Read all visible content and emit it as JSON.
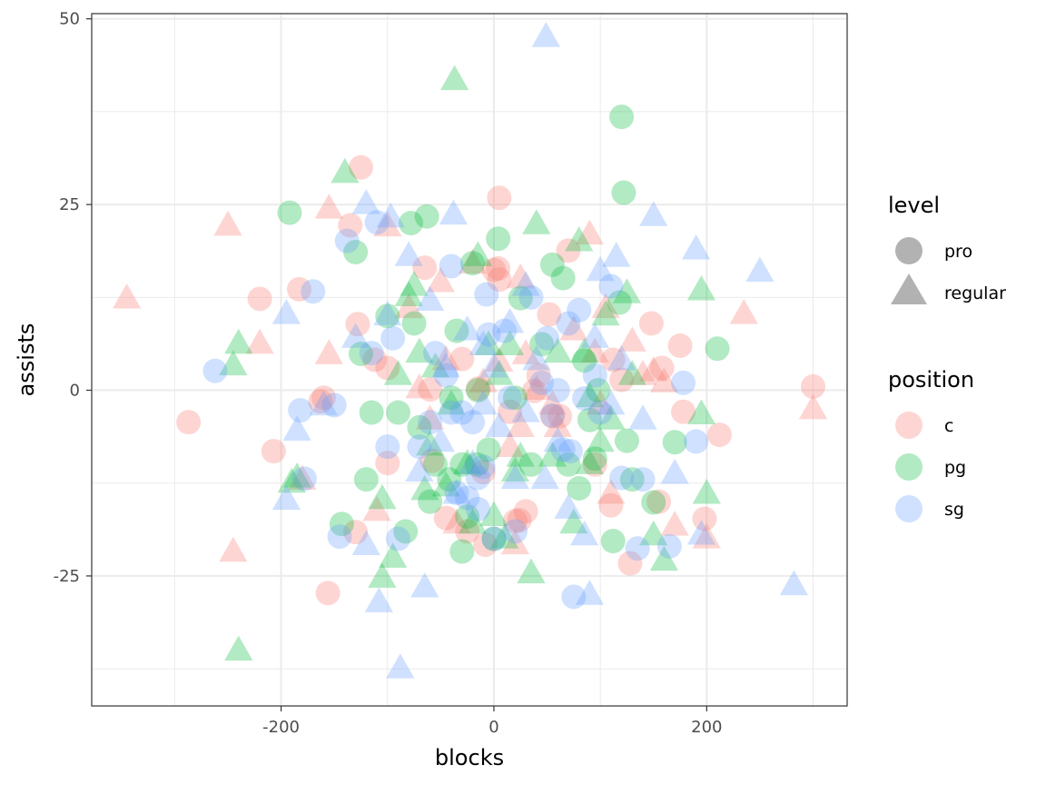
{
  "chart_data": {
    "type": "scatter",
    "title": "",
    "xlabel": "blocks",
    "ylabel": "assists",
    "xlim": [
      -378,
      332
    ],
    "ylim": [
      -42.5,
      50.7
    ],
    "x_ticks": [
      -200,
      0,
      200
    ],
    "y_ticks": [
      -25,
      0,
      25,
      50
    ],
    "x_tick_labels": [
      "-200",
      "0",
      "200"
    ],
    "y_tick_labels": [
      "-25",
      "0",
      "25",
      "50"
    ],
    "grid": true,
    "legend_position": "right",
    "legends": {
      "level": {
        "title": "level",
        "items": [
          {
            "label": "pro",
            "shape": "circle"
          },
          {
            "label": "regular",
            "shape": "triangle"
          }
        ]
      },
      "position": {
        "title": "position",
        "items": [
          {
            "label": "c",
            "color": "#F8766D"
          },
          {
            "label": "pg",
            "color": "#00BA38"
          },
          {
            "label": "sg",
            "color": "#619CFF"
          }
        ]
      }
    },
    "point_alpha": 0.3,
    "series": [
      {
        "position": "c",
        "level": "pro",
        "points": [
          [
            -287,
            -4.3
          ],
          [
            -207,
            -8.2
          ],
          [
            -220,
            12.3
          ],
          [
            -183,
            13.6
          ],
          [
            -163,
            -1.5
          ],
          [
            -160,
            -1
          ],
          [
            -156,
            -27.3
          ],
          [
            -135,
            22.2
          ],
          [
            -125,
            30
          ],
          [
            -128,
            8.9
          ],
          [
            -130,
            -19.1
          ],
          [
            -112,
            4.1
          ],
          [
            -100,
            3
          ],
          [
            -100,
            -9.8
          ],
          [
            -65,
            16.5
          ],
          [
            -60,
            0.1
          ],
          [
            -58,
            -9.5
          ],
          [
            -45,
            -17.2
          ],
          [
            -30,
            4.2
          ],
          [
            -15,
            0.2
          ],
          [
            -10,
            -11
          ],
          [
            -8,
            -20.8
          ],
          [
            0,
            16.2
          ],
          [
            4,
            16.4
          ],
          [
            5,
            25.9
          ],
          [
            5,
            14.9
          ],
          [
            15,
            -2.9
          ],
          [
            20,
            -17.6
          ],
          [
            24,
            -17.5
          ],
          [
            30,
            -16.3
          ],
          [
            38,
            -0.1
          ],
          [
            42,
            2
          ],
          [
            52,
            10.2
          ],
          [
            55,
            -3.5
          ],
          [
            62,
            -3.5
          ],
          [
            70,
            18.8
          ],
          [
            95,
            -10
          ],
          [
            110,
            -15.5
          ],
          [
            112,
            4.1
          ],
          [
            120,
            1.4
          ],
          [
            128,
            -23.3
          ],
          [
            148,
            9
          ],
          [
            155,
            -15
          ],
          [
            158,
            3
          ],
          [
            175,
            6
          ],
          [
            178,
            -2.9
          ],
          [
            198,
            -17.3
          ],
          [
            212,
            -6
          ],
          [
            300,
            0.5
          ],
          [
            -25,
            -19
          ]
        ]
      },
      {
        "position": "c",
        "level": "regular",
        "points": [
          [
            -345,
            12.3
          ],
          [
            -250,
            22.1
          ],
          [
            -220,
            6.2
          ],
          [
            -245,
            -21.8
          ],
          [
            -180,
            -12.1
          ],
          [
            -155,
            24.4
          ],
          [
            -155,
            4.8
          ],
          [
            -100,
            22
          ],
          [
            -110,
            -16.3
          ],
          [
            -80,
            11
          ],
          [
            -70,
            0.2
          ],
          [
            -50,
            14.5
          ],
          [
            -45,
            4
          ],
          [
            -35,
            -18
          ],
          [
            -20,
            17
          ],
          [
            -10,
            1
          ],
          [
            5,
            3.8
          ],
          [
            15,
            -7.7
          ],
          [
            20,
            -20.8
          ],
          [
            25,
            -5
          ],
          [
            25,
            15
          ],
          [
            30,
            4.8
          ],
          [
            40,
            0
          ],
          [
            55,
            -2
          ],
          [
            60,
            -5
          ],
          [
            75,
            8
          ],
          [
            90,
            20.9
          ],
          [
            95,
            5
          ],
          [
            100,
            -2
          ],
          [
            110,
            -14
          ],
          [
            130,
            6.5
          ],
          [
            140,
            2
          ],
          [
            150,
            2.5
          ],
          [
            160,
            1
          ],
          [
            170,
            -18.3
          ],
          [
            200,
            -20
          ],
          [
            235,
            10.2
          ],
          [
            300,
            -2.6
          ],
          [
            105,
            11
          ],
          [
            -60,
            -4
          ]
        ]
      },
      {
        "position": "pg",
        "level": "pro",
        "points": [
          [
            -192,
            23.9
          ],
          [
            -130,
            18.6
          ],
          [
            -125,
            4.9
          ],
          [
            -115,
            -3
          ],
          [
            -120,
            -12
          ],
          [
            -143,
            -18
          ],
          [
            -100,
            10
          ],
          [
            -90,
            -3
          ],
          [
            -83,
            -19
          ],
          [
            -78,
            22.5
          ],
          [
            -75,
            9
          ],
          [
            -70,
            -5
          ],
          [
            -63,
            23.4
          ],
          [
            -60,
            -15
          ],
          [
            -55,
            -10
          ],
          [
            -42,
            -12
          ],
          [
            -35,
            8
          ],
          [
            -30,
            -10
          ],
          [
            -25,
            -17
          ],
          [
            -20,
            17.1
          ],
          [
            -16,
            -10
          ],
          [
            -15,
            0
          ],
          [
            -5,
            -8
          ],
          [
            0,
            -20
          ],
          [
            4,
            20.4
          ],
          [
            20,
            -1
          ],
          [
            25,
            12.4
          ],
          [
            45,
            6.2
          ],
          [
            55,
            16.9
          ],
          [
            65,
            15.1
          ],
          [
            70,
            -10
          ],
          [
            80,
            -13.2
          ],
          [
            85,
            4
          ],
          [
            90,
            -4
          ],
          [
            95,
            -9.2
          ],
          [
            98,
            0
          ],
          [
            112,
            -20.3
          ],
          [
            118,
            11.8
          ],
          [
            120,
            36.8
          ],
          [
            122,
            26.6
          ],
          [
            125,
            -6.8
          ],
          [
            130,
            -12
          ],
          [
            150,
            -15.1
          ],
          [
            170,
            -7
          ],
          [
            210,
            5.6
          ],
          [
            -40,
            -1
          ],
          [
            -30,
            -21.7
          ],
          [
            35,
            -10
          ]
        ]
      },
      {
        "position": "pg",
        "level": "regular",
        "points": [
          [
            -240,
            6.2
          ],
          [
            -245,
            3.3
          ],
          [
            -190,
            -12.5
          ],
          [
            -185,
            -11.8
          ],
          [
            -140,
            29.2
          ],
          [
            -105,
            -14.7
          ],
          [
            -105,
            -25.3
          ],
          [
            -95,
            -22.6
          ],
          [
            -90,
            2
          ],
          [
            -80,
            12.6
          ],
          [
            -75,
            14
          ],
          [
            -65,
            -13.5
          ],
          [
            -60,
            -7.5
          ],
          [
            -55,
            3
          ],
          [
            -45,
            -13
          ],
          [
            -40,
            -2
          ],
          [
            -37,
            41.7
          ],
          [
            -25,
            -10
          ],
          [
            -20,
            -18
          ],
          [
            -15,
            18
          ],
          [
            -5,
            6
          ],
          [
            0,
            -17
          ],
          [
            5,
            2
          ],
          [
            10,
            -20
          ],
          [
            15,
            6
          ],
          [
            20,
            -11
          ],
          [
            25,
            -9
          ],
          [
            35,
            -24.7
          ],
          [
            40,
            22.3
          ],
          [
            60,
            5
          ],
          [
            75,
            -18
          ],
          [
            80,
            20
          ],
          [
            85,
            5
          ],
          [
            90,
            -1
          ],
          [
            100,
            -7
          ],
          [
            105,
            10
          ],
          [
            110,
            -4
          ],
          [
            125,
            13
          ],
          [
            130,
            2
          ],
          [
            150,
            -19.6
          ],
          [
            160,
            -23
          ],
          [
            195,
            -3.3
          ],
          [
            195,
            13.4
          ],
          [
            200,
            -14
          ],
          [
            -240,
            -35.1
          ],
          [
            -70,
            5
          ],
          [
            55,
            -9
          ],
          [
            90,
            -10
          ]
        ]
      },
      {
        "position": "sg",
        "level": "pro",
        "points": [
          [
            -262,
            2.6
          ],
          [
            -182,
            -2.7
          ],
          [
            -178,
            -11.9
          ],
          [
            -170,
            13.3
          ],
          [
            -145,
            -19.7
          ],
          [
            -138,
            20.1
          ],
          [
            -115,
            5
          ],
          [
            -110,
            22.6
          ],
          [
            -100,
            -7.6
          ],
          [
            -95,
            7
          ],
          [
            -90,
            -20
          ],
          [
            -70,
            -7.6
          ],
          [
            -60,
            -4.3
          ],
          [
            -55,
            5
          ],
          [
            -45,
            2
          ],
          [
            -40,
            -3
          ],
          [
            -35,
            -13.8
          ],
          [
            -30,
            -3
          ],
          [
            -25,
            -14.5
          ],
          [
            -20,
            -4.3
          ],
          [
            -15,
            -11.8
          ],
          [
            -10,
            -10.3
          ],
          [
            -7,
            12.9
          ],
          [
            -5,
            7.5
          ],
          [
            0,
            -20
          ],
          [
            10,
            8
          ],
          [
            15,
            -1
          ],
          [
            20,
            -19
          ],
          [
            35,
            12.5
          ],
          [
            45,
            1
          ],
          [
            50,
            7
          ],
          [
            55,
            -3.4
          ],
          [
            60,
            0
          ],
          [
            65,
            -8
          ],
          [
            72,
            -8.2
          ],
          [
            75,
            -27.8
          ],
          [
            80,
            10.8
          ],
          [
            85,
            -1.1
          ],
          [
            95,
            2
          ],
          [
            100,
            -3
          ],
          [
            110,
            14
          ],
          [
            120,
            -11.8
          ],
          [
            135,
            -21.3
          ],
          [
            140,
            -12
          ],
          [
            165,
            -21
          ],
          [
            178,
            1
          ],
          [
            190,
            -6.9
          ],
          [
            -150,
            -2
          ],
          [
            70,
            9
          ],
          [
            -40,
            16.7
          ],
          [
            -15,
            -16
          ]
        ]
      },
      {
        "position": "sg",
        "level": "regular",
        "points": [
          [
            -195,
            -14.8
          ],
          [
            -195,
            10.2
          ],
          [
            -185,
            -5.5
          ],
          [
            -160,
            -2.1
          ],
          [
            -130,
            7
          ],
          [
            -120,
            25
          ],
          [
            -120,
            -20.9
          ],
          [
            -108,
            -28.6
          ],
          [
            -100,
            10
          ],
          [
            -97,
            23.2
          ],
          [
            -88,
            -37.5
          ],
          [
            -80,
            18
          ],
          [
            -65,
            -26.6
          ],
          [
            -60,
            12
          ],
          [
            -50,
            -7
          ],
          [
            -45,
            3
          ],
          [
            -38,
            23.6
          ],
          [
            -35,
            -14
          ],
          [
            -25,
            8
          ],
          [
            -20,
            -10
          ],
          [
            -10,
            6
          ],
          [
            0,
            3
          ],
          [
            5,
            -5
          ],
          [
            15,
            9
          ],
          [
            20,
            -12
          ],
          [
            30,
            -3
          ],
          [
            40,
            4
          ],
          [
            48,
            -12
          ],
          [
            49,
            47.5
          ],
          [
            70,
            -16
          ],
          [
            85,
            -19.6
          ],
          [
            90,
            -27.6
          ],
          [
            95,
            7
          ],
          [
            100,
            16
          ],
          [
            115,
            17.9
          ],
          [
            120,
            4
          ],
          [
            140,
            -4
          ],
          [
            150,
            23.4
          ],
          [
            170,
            -11.3
          ],
          [
            190,
            18.9
          ],
          [
            195,
            -19.5
          ],
          [
            250,
            15.9
          ],
          [
            282,
            -26.3
          ],
          [
            60,
            -7
          ],
          [
            -70,
            -11
          ],
          [
            -10,
            -2
          ],
          [
            30,
            14
          ],
          [
            110,
            -2
          ]
        ]
      }
    ]
  }
}
